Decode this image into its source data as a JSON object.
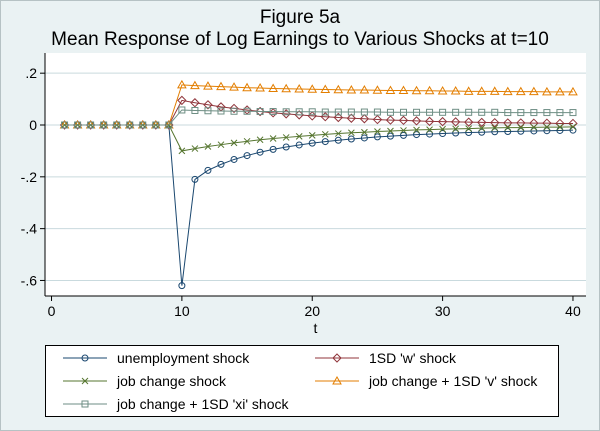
{
  "figure": {
    "title_line1": "Figure 5a",
    "title_line2": "Mean Response of Log Earnings to Various Shocks at t=10"
  },
  "colors": {
    "background": "#eaf2f3",
    "plot_background": "#ffffff",
    "grid": "#c9dade",
    "axis": "#000000",
    "text": "#000000"
  },
  "chart_data": {
    "type": "line",
    "title": "Figure 5a",
    "subtitle": "Mean Response of Log Earnings to Various Shocks at t=10",
    "xlabel": "t",
    "ylabel": "",
    "grid": true,
    "legend_position": "bottom",
    "xlim": [
      -0.5,
      41
    ],
    "ylim": [
      -0.66,
      0.22
    ],
    "x_ticks": [
      0,
      10,
      20,
      30,
      40
    ],
    "y_ticks": [
      0.2,
      0,
      -0.2,
      -0.4,
      -0.6
    ],
    "y_tick_labels": [
      ".2",
      "0",
      "-.2",
      "-.4",
      "-.6"
    ],
    "x": [
      1,
      2,
      3,
      4,
      5,
      6,
      7,
      8,
      9,
      10,
      11,
      12,
      13,
      14,
      15,
      16,
      17,
      18,
      19,
      20,
      21,
      22,
      23,
      24,
      25,
      26,
      27,
      28,
      29,
      30,
      31,
      32,
      33,
      34,
      35,
      36,
      37,
      38,
      39,
      40
    ],
    "series": [
      {
        "name": "unemployment shock",
        "marker": "circle",
        "color": "#1a476f",
        "values": [
          0,
          0,
          0,
          0,
          0,
          0,
          0,
          0,
          0,
          -0.62,
          -0.21,
          -0.175,
          -0.152,
          -0.133,
          -0.118,
          -0.105,
          -0.094,
          -0.085,
          -0.077,
          -0.07,
          -0.064,
          -0.059,
          -0.054,
          -0.05,
          -0.046,
          -0.043,
          -0.04,
          -0.037,
          -0.035,
          -0.033,
          -0.031,
          -0.029,
          -0.028,
          -0.026,
          -0.025,
          -0.024,
          -0.023,
          -0.022,
          -0.021,
          -0.02
        ]
      },
      {
        "name": "1SD 'w' shock",
        "marker": "diamond",
        "color": "#90353b",
        "values": [
          0,
          0,
          0,
          0,
          0,
          0,
          0,
          0,
          0,
          0.095,
          0.086,
          0.078,
          0.07,
          0.064,
          0.058,
          0.052,
          0.047,
          0.043,
          0.039,
          0.035,
          0.032,
          0.029,
          0.026,
          0.024,
          0.021,
          0.019,
          0.018,
          0.016,
          0.014,
          0.013,
          0.012,
          0.011,
          0.01,
          0.009,
          0.008,
          0.008,
          0.007,
          0.007,
          0.006,
          0.006
        ]
      },
      {
        "name": "job change shock",
        "marker": "x",
        "color": "#55752f",
        "values": [
          0,
          0,
          0,
          0,
          0,
          0,
          0,
          0,
          0,
          -0.1,
          -0.091,
          -0.083,
          -0.076,
          -0.069,
          -0.063,
          -0.057,
          -0.052,
          -0.048,
          -0.044,
          -0.04,
          -0.036,
          -0.033,
          -0.03,
          -0.028,
          -0.025,
          -0.023,
          -0.021,
          -0.019,
          -0.018,
          -0.016,
          -0.015,
          -0.014,
          -0.012,
          -0.011,
          -0.01,
          -0.01,
          -0.009,
          -0.008,
          -0.008,
          -0.007
        ]
      },
      {
        "name": "job change + 1SD 'v' shock",
        "marker": "triangle",
        "color": "#e37e00",
        "values": [
          0,
          0,
          0,
          0,
          0,
          0,
          0,
          0,
          0,
          0.155,
          0.152,
          0.15,
          0.148,
          0.146,
          0.144,
          0.143,
          0.141,
          0.14,
          0.139,
          0.138,
          0.137,
          0.136,
          0.135,
          0.135,
          0.134,
          0.133,
          0.133,
          0.132,
          0.132,
          0.131,
          0.131,
          0.13,
          0.13,
          0.13,
          0.129,
          0.129,
          0.129,
          0.128,
          0.128,
          0.128
        ]
      },
      {
        "name": "job change + 1SD 'xi' shock",
        "marker": "square",
        "color": "#6e8e84",
        "values": [
          0,
          0,
          0,
          0,
          0,
          0,
          0,
          0,
          0,
          0.058,
          0.056,
          0.055,
          0.054,
          0.053,
          0.053,
          0.052,
          0.052,
          0.051,
          0.051,
          0.051,
          0.05,
          0.05,
          0.05,
          0.05,
          0.05,
          0.049,
          0.049,
          0.049,
          0.049,
          0.049,
          0.049,
          0.049,
          0.049,
          0.049,
          0.048,
          0.048,
          0.048,
          0.048,
          0.048,
          0.048
        ]
      }
    ]
  }
}
